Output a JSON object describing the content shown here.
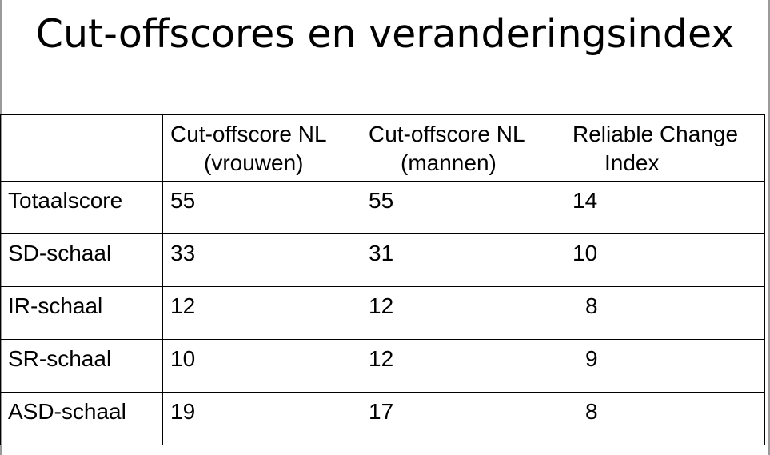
{
  "slide": {
    "title": "Cut-offscores en veranderingsindex"
  },
  "table": {
    "headers": {
      "label": "",
      "col_a": [
        "Cut-offscore NL",
        "(vrouwen)"
      ],
      "col_b": [
        "Cut-offscore NL",
        "(mannen)"
      ],
      "col_c": [
        "Reliable Change",
        "Index"
      ]
    },
    "rows": [
      {
        "label": "Totaalscore",
        "vrouwen": "55",
        "mannen": "55",
        "rci": "14"
      },
      {
        "label": "SD-schaal",
        "vrouwen": "33",
        "mannen": "31",
        "rci": "10"
      },
      {
        "label": "IR-schaal",
        "vrouwen": "12",
        "mannen": "12",
        "rci": "8"
      },
      {
        "label": "SR-schaal",
        "vrouwen": "10",
        "mannen": "12",
        "rci": "9"
      },
      {
        "label": "ASD-schaal",
        "vrouwen": "19",
        "mannen": "17",
        "rci": "8"
      }
    ]
  }
}
